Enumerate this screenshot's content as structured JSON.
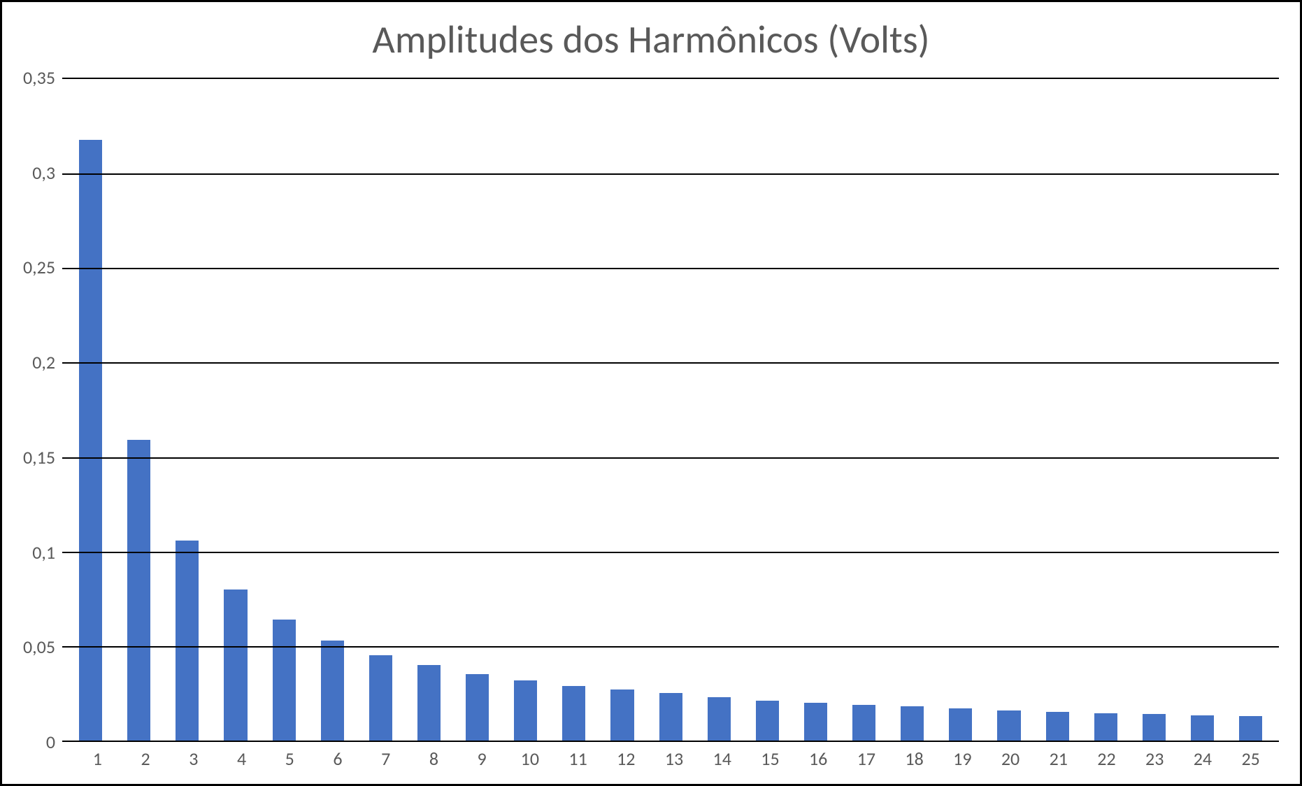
{
  "chart": {
    "type": "bar",
    "title": "Amplitudes dos Harmônicos (Volts)",
    "title_fontsize": 56,
    "title_color": "#595959",
    "background_color": "#ffffff",
    "border_color": "#000000",
    "grid_color": "#000000",
    "bar_color": "#4472c4",
    "axis_label_color": "#595959",
    "axis_label_fontsize": 26,
    "decimal_separator": ",",
    "ylim": [
      0,
      0.35
    ],
    "ytick_step": 0.05,
    "y_ticks": [
      "0,35",
      "0,3",
      "0,25",
      "0,2",
      "0,15",
      "0,1",
      "0,05",
      "0"
    ],
    "categories": [
      "1",
      "2",
      "3",
      "4",
      "5",
      "6",
      "7",
      "8",
      "9",
      "10",
      "11",
      "12",
      "13",
      "14",
      "15",
      "16",
      "17",
      "18",
      "19",
      "20",
      "21",
      "22",
      "23",
      "24",
      "25"
    ],
    "values": [
      0.318,
      0.159,
      0.106,
      0.08,
      0.064,
      0.053,
      0.045,
      0.04,
      0.035,
      0.032,
      0.029,
      0.027,
      0.025,
      0.023,
      0.021,
      0.02,
      0.019,
      0.018,
      0.017,
      0.016,
      0.015,
      0.0145,
      0.014,
      0.0135,
      0.013
    ],
    "bar_width": 0.48
  }
}
